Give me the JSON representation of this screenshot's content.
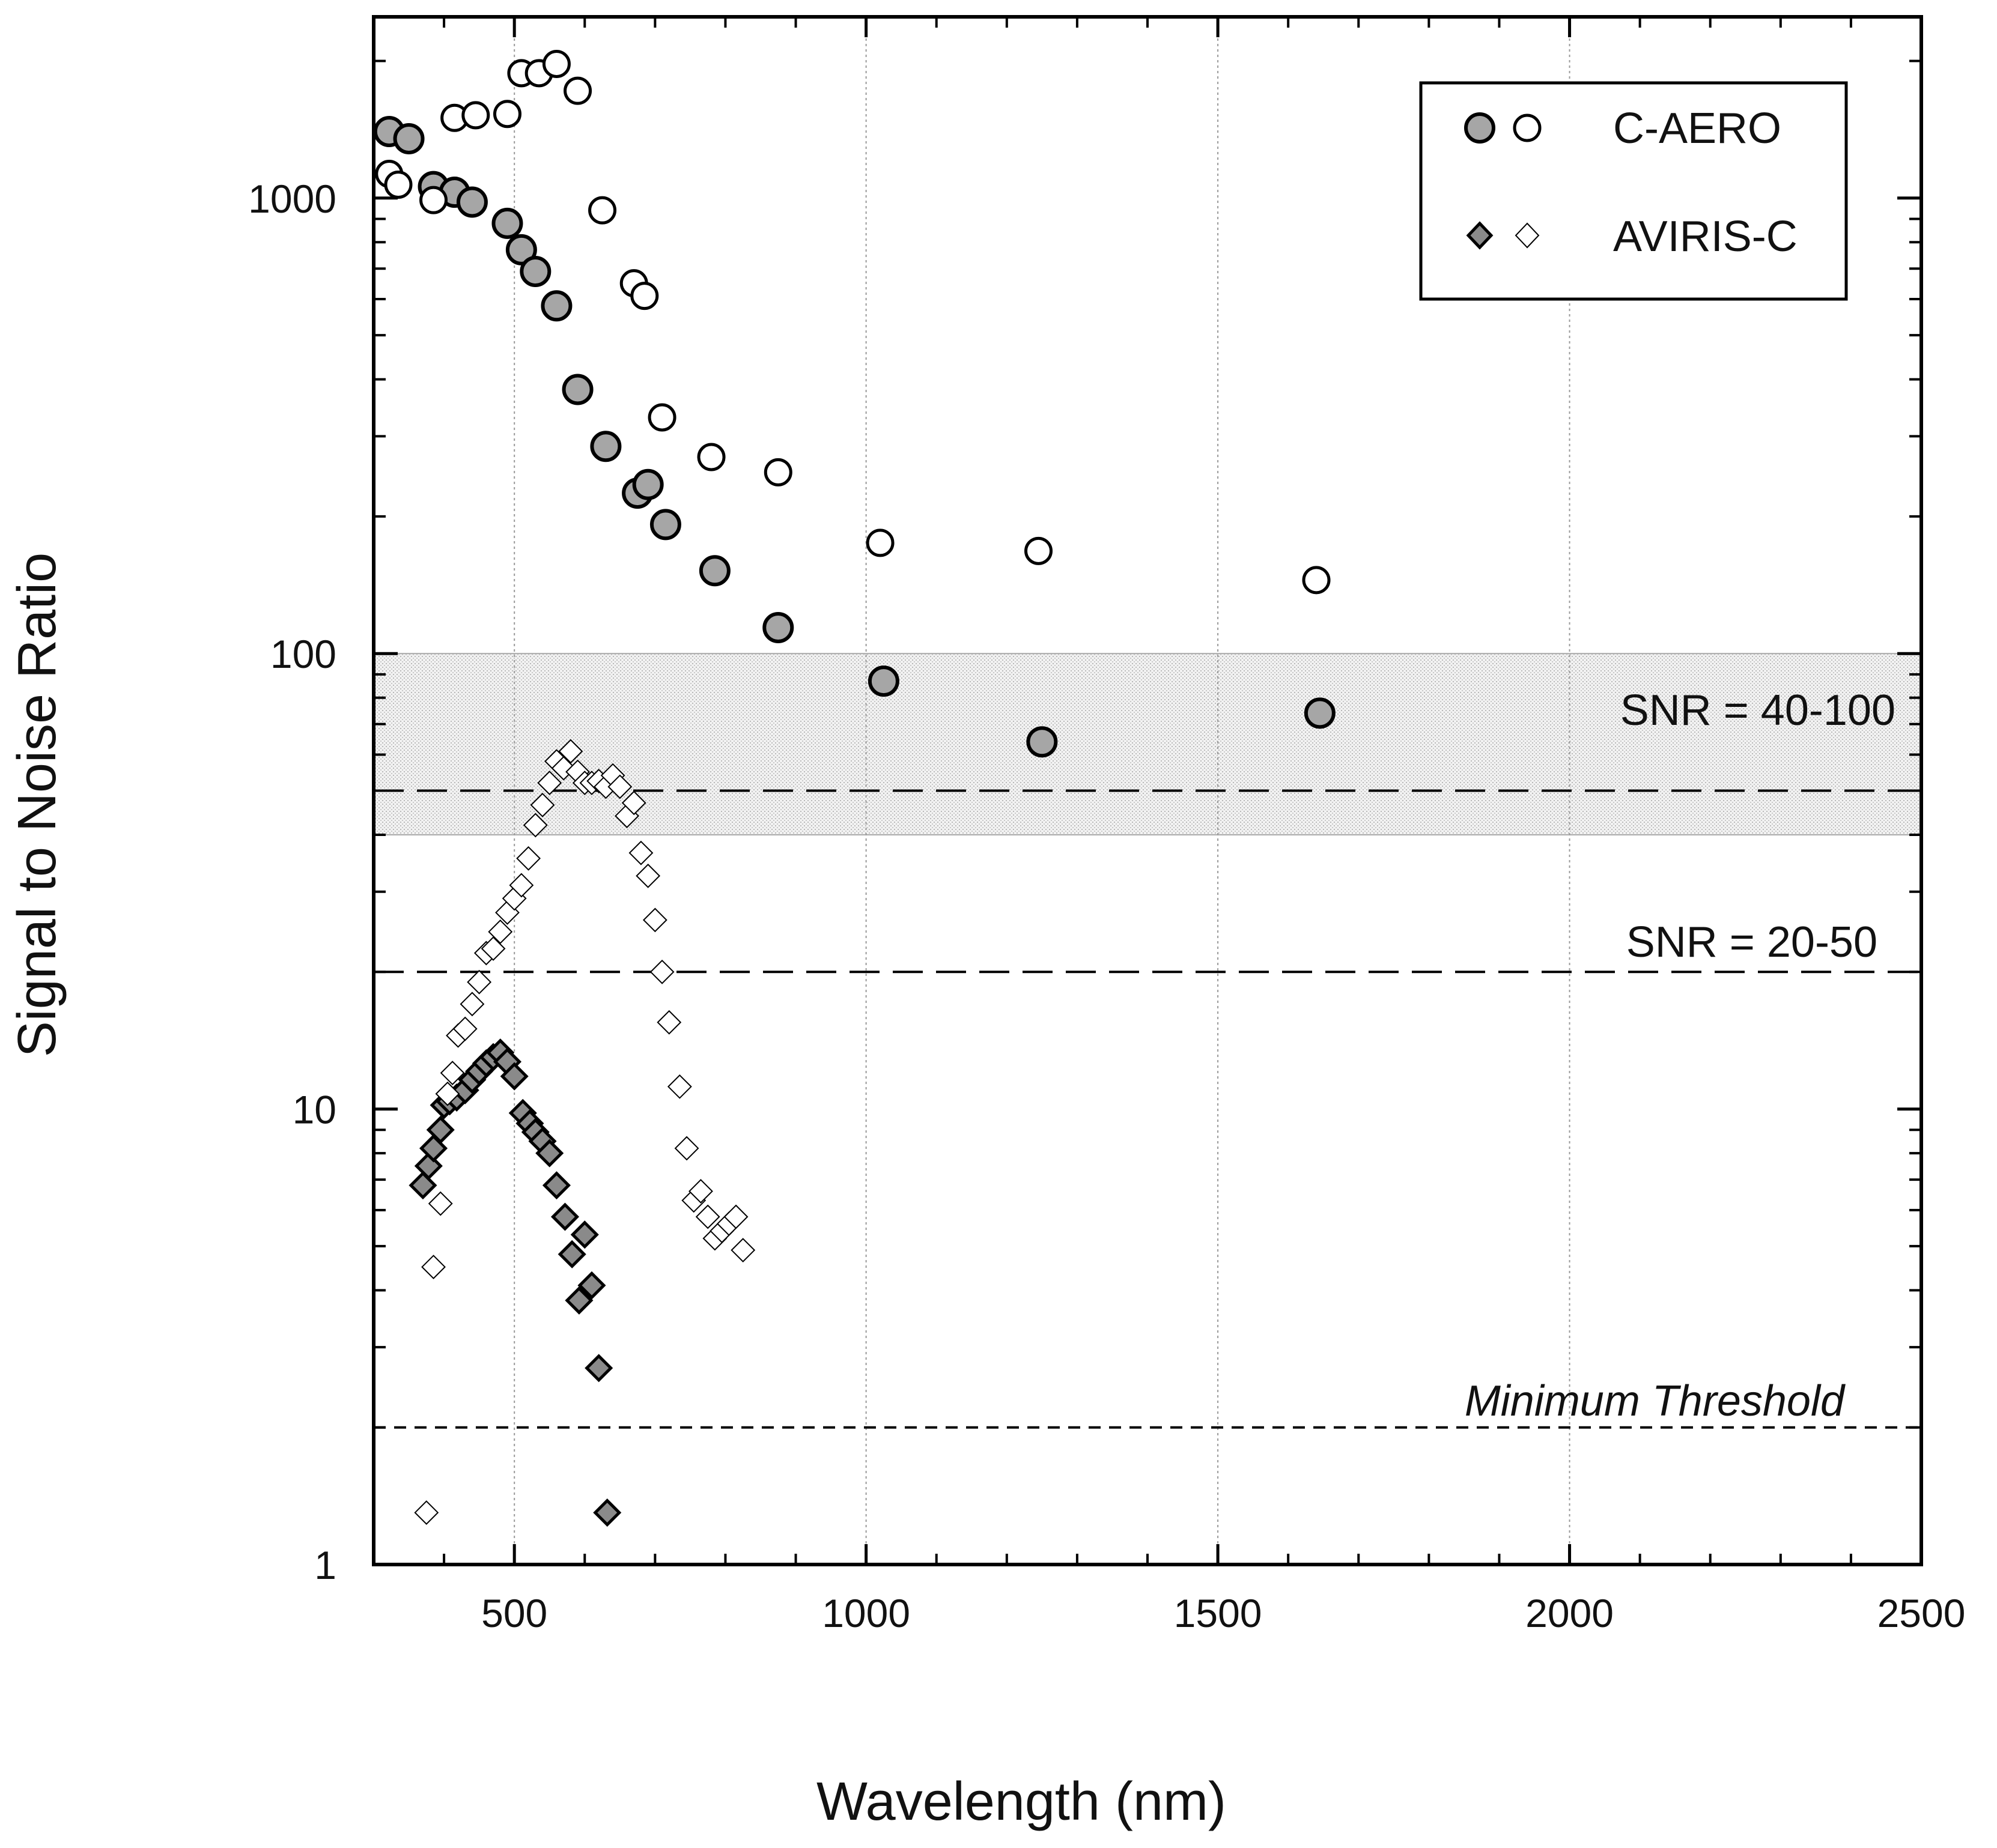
{
  "chart_data": {
    "type": "scatter",
    "xlabel": "Wavelength (nm)",
    "ylabel": "Signal to Noise Ratio",
    "xlim": [
      300,
      2500
    ],
    "ylim": [
      1,
      2500
    ],
    "yscale": "log",
    "x_ticks": [
      500,
      1000,
      1500,
      2000,
      2500
    ],
    "y_ticks": [
      1,
      10,
      100,
      1000
    ],
    "x_tick_labels": [
      "500",
      "1000",
      "1500",
      "2000",
      "2500"
    ],
    "y_tick_labels": [
      "1",
      "10",
      "100",
      "1000"
    ],
    "grid": "vertical dotted at major x ticks",
    "legend_position": "top-right",
    "legend": [
      {
        "label": "C-AERO",
        "markers": [
          "filled circle",
          "open circle"
        ]
      },
      {
        "label": "AVIRIS-C",
        "markers": [
          "filled diamond",
          "open diamond"
        ]
      }
    ],
    "band": {
      "range": [
        40,
        100
      ],
      "label": "SNR = 40-100",
      "dashed_line_at": 50
    },
    "reference_lines": [
      {
        "y": 20,
        "label": "SNR = 20-50",
        "style": "long-dash"
      },
      {
        "y": 2,
        "label": "Minimum Threshold",
        "style": "short-dash",
        "italic": true
      }
    ],
    "series": [
      {
        "name": "C-AERO (filled)",
        "marker": "circle",
        "filled": true,
        "x": [
          322,
          350,
          385,
          415,
          440,
          490,
          510,
          530,
          560,
          590,
          630,
          675,
          690,
          715,
          785,
          875,
          1025,
          1250,
          1645
        ],
        "y": [
          1400,
          1350,
          1060,
          1030,
          980,
          880,
          770,
          690,
          580,
          380,
          285,
          225,
          235,
          192,
          152,
          114,
          87,
          64,
          74
        ]
      },
      {
        "name": "C-AERO (open)",
        "marker": "circle",
        "filled": false,
        "x": [
          322,
          335,
          385,
          415,
          445,
          490,
          510,
          535,
          560,
          590,
          625,
          670,
          685,
          710,
          780,
          875,
          1020,
          1245,
          1640
        ],
        "y": [
          1130,
          1070,
          990,
          1500,
          1520,
          1530,
          1880,
          1880,
          1970,
          1720,
          940,
          650,
          610,
          330,
          270,
          250,
          175,
          168,
          145
        ]
      },
      {
        "name": "AVIRIS-C (filled)",
        "marker": "diamond",
        "filled": true,
        "x": [
          370,
          378,
          385,
          395,
          400,
          408,
          418,
          430,
          440,
          450,
          460,
          470,
          480,
          490,
          500,
          512,
          522,
          530,
          540,
          550,
          560,
          572,
          582,
          592,
          600,
          610,
          620,
          632
        ],
        "y": [
          6.8,
          7.5,
          8.2,
          9.0,
          10.2,
          10.4,
          10.6,
          11.0,
          11.6,
          12.1,
          12.6,
          13.0,
          13.3,
          12.7,
          11.8,
          9.8,
          9.3,
          8.9,
          8.5,
          8.0,
          6.8,
          5.8,
          4.8,
          3.8,
          5.3,
          4.1,
          2.7,
          1.3
        ]
      },
      {
        "name": "AVIRIS-C (open)",
        "marker": "diamond",
        "filled": false,
        "x": [
          375,
          385,
          395,
          405,
          412,
          420,
          430,
          440,
          450,
          460,
          470,
          480,
          490,
          500,
          510,
          520,
          530,
          540,
          550,
          560,
          570,
          580,
          590,
          600,
          610,
          620,
          630,
          640,
          650,
          660,
          670,
          680,
          690,
          700,
          710,
          720,
          735,
          745,
          755,
          765,
          775,
          785,
          795,
          805,
          815,
          825
        ],
        "y": [
          1.3,
          4.5,
          6.2,
          10.8,
          12.0,
          14.5,
          15.0,
          17.0,
          19.0,
          22.0,
          22.5,
          24.5,
          27.0,
          29.0,
          31.0,
          35.5,
          42.0,
          46.5,
          52.0,
          58.0,
          56.0,
          61.0,
          55.0,
          52.0,
          52.0,
          52.5,
          51.0,
          54.0,
          51.0,
          44.0,
          47.0,
          36.5,
          32.5,
          26.0,
          20.0,
          15.5,
          11.2,
          8.2,
          6.3,
          6.6,
          5.8,
          5.2,
          5.4,
          5.6,
          5.8,
          4.9
        ]
      }
    ]
  }
}
